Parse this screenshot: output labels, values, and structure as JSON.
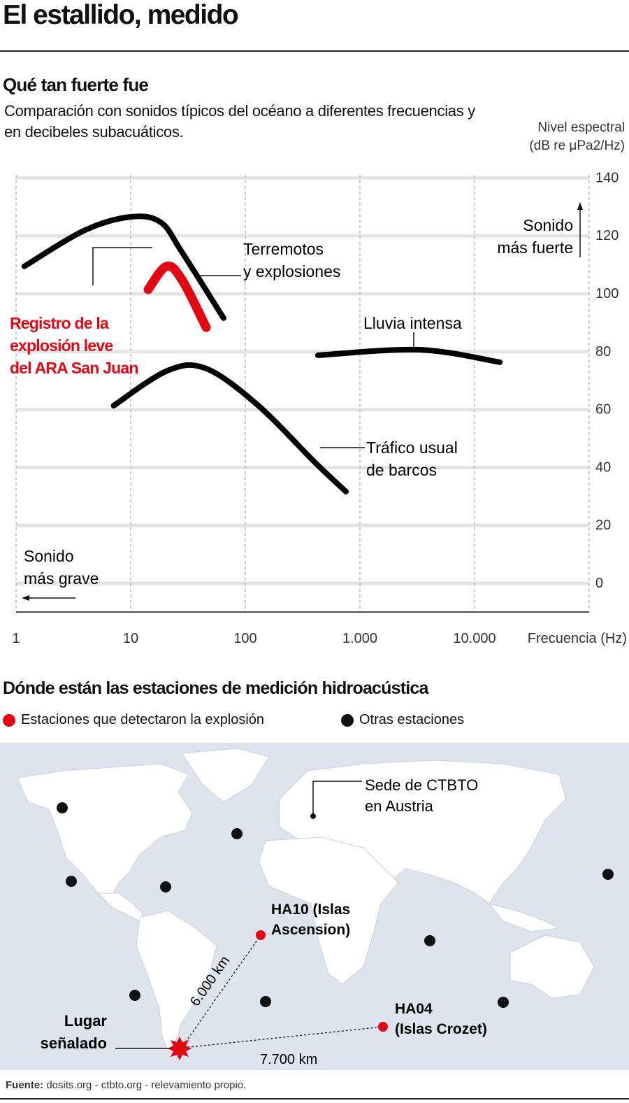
{
  "title": "El estallido, medido",
  "section1": {
    "heading": "Qué tan fuerte fue",
    "subtitle": "Comparación con sonidos típicos del océano a diferentes frecuencias y en decibeles subacuáticos.",
    "ylabel_line1": "Nivel espectral",
    "ylabel_line2": "(dB re μPa2/Hz)"
  },
  "chart_data": {
    "type": "line",
    "title": "Qué tan fuerte fue",
    "xlabel": "Frecuencia (Hz)",
    "ylabel": "Nivel espectral (dB re μPa2/Hz)",
    "xscale": "log",
    "xlim": [
      1,
      100000
    ],
    "ylim": [
      -10,
      140
    ],
    "x_ticks": [
      {
        "v": 1,
        "label": "1"
      },
      {
        "v": 10,
        "label": "10"
      },
      {
        "v": 100,
        "label": "100"
      },
      {
        "v": 1000,
        "label": "1.000"
      },
      {
        "v": 10000,
        "label": "10.000"
      }
    ],
    "y_ticks": [
      140,
      120,
      100,
      80,
      60,
      40,
      20,
      0
    ],
    "series": [
      {
        "name": "Terremotos y explosiones",
        "color": "#000000",
        "points": [
          [
            1.18,
            108.5
          ],
          [
            3.9,
            120.8
          ],
          [
            10,
            125.6
          ],
          [
            18.3,
            123.7
          ],
          [
            27.9,
            113.5
          ],
          [
            64.7,
            90.6
          ]
        ]
      },
      {
        "name": "Registro de la explosión leve del ARA San Juan",
        "color": "#e30613",
        "points": [
          [
            14.2,
            100.5
          ],
          [
            20.5,
            108.5
          ],
          [
            27.9,
            104
          ],
          [
            45.6,
            87.4
          ]
        ]
      },
      {
        "name": "Lluvia intensa",
        "color": "#000000",
        "points": [
          [
            430,
            77.8
          ],
          [
            3300,
            79.7
          ],
          [
            16600,
            75.4
          ]
        ]
      },
      {
        "name": "Tráfico usual de barcos",
        "color": "#000000",
        "points": [
          [
            7.1,
            60.4
          ],
          [
            21,
            72.5
          ],
          [
            45.6,
            73.2
          ],
          [
            130,
            60.4
          ],
          [
            400,
            41
          ],
          [
            755,
            30.7
          ]
        ]
      }
    ],
    "annotations": {
      "terremotos_1": "Terremotos",
      "terremotos_2": "y explosiones",
      "registro_1": "Registro de la",
      "registro_2": "explosión leve",
      "registro_3": "del ARA San Juan",
      "lluvia": "Lluvia intensa",
      "trafico_1": "Tráfico usual",
      "trafico_2": "de barcos",
      "fuerte_1": "Sonido",
      "fuerte_2": "más fuerte",
      "grave_1": "Sonido",
      "grave_2": "más grave"
    },
    "grid": true
  },
  "section2": {
    "heading": "Dónde están las estaciones de medición hidroacústica",
    "legend_detected": "Estaciones que detectaron la explosión",
    "legend_other": "Otras estaciones",
    "colors": {
      "detected": "#e30613",
      "other": "#111111",
      "ocean": "#dde4ee",
      "land": "#ffffff"
    },
    "map": {
      "hq_1": "Sede de CTBTO",
      "hq_2": "en Austria",
      "ha10_1": "HA10 (Islas",
      "ha10_2": "Ascension)",
      "ha04_1": "HA04",
      "ha04_2": "(Islas Crozet)",
      "site_1": "Lugar",
      "site_2": "señalado",
      "dist_ha10": "6.000 km",
      "dist_ha04": "7.700 km"
    }
  },
  "source": {
    "label": "Fuente:",
    "text": " dosits.org - ctbto.org - relevamiento propio."
  }
}
